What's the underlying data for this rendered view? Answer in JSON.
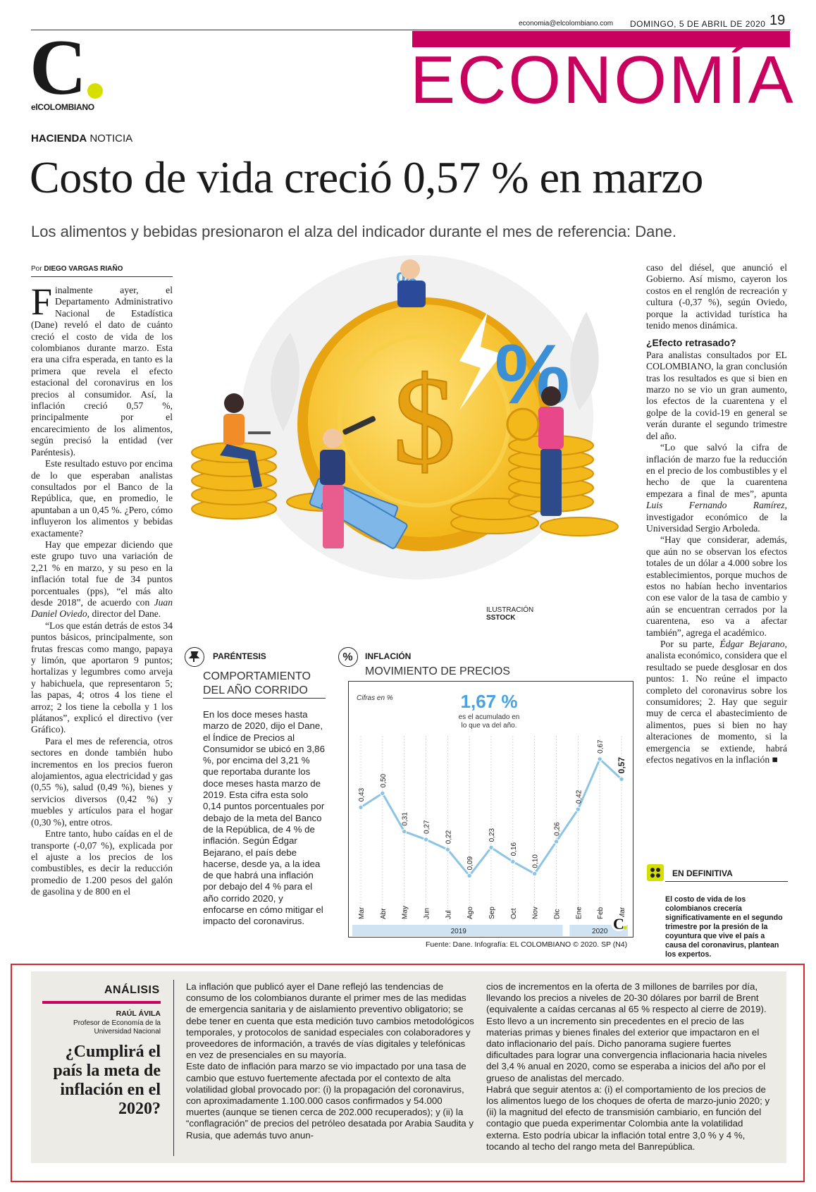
{
  "header": {
    "email": "economia@elcolombiano.com",
    "date": "DOMINGO, 5 DE ABRIL DE 2020",
    "page_number": "19",
    "section": "ECONOMÍA",
    "logo_letter": "C",
    "logo_name": "elCOLOMBIANO",
    "kicker_bold": "HACIENDA",
    "kicker_rest": " NOTICIA"
  },
  "article": {
    "headline": "Costo de vida creció 0,57 % en marzo",
    "subhead": "Los alimentos y bebidas presionaron el alza del indicador durante el mes de referencia: Dane.",
    "byline_prefix": "Por ",
    "byline_name": "DIEGO VARGAS RIAÑO",
    "drop_cap": "F",
    "col1_first": "inalmente ayer, el Departamento Administrativo Nacional de Estadística (Dane) reveló el dato de cuánto creció el costo de vida de los colombianos durante marzo. Esta era una cifra esperada, en tanto es la primera que revela el efecto estacional del coronavirus en los precios al consumidor. Así, la inflación creció 0,57 %, principalmente por el encarecimiento de los alimentos, según precisó la entidad (ver Paréntesis).",
    "col1_p2": "Este resultado estuvo por encima de lo que esperaban analistas consultados por el Banco de la República, que, en promedio, le apuntaban a un 0,45 %. ¿Pero, cómo influyeron los alimentos y bebidas exactamente?",
    "col1_p3a": "Hay que empezar diciendo que este grupo tuvo una variación de 2,21 % en marzo, y su peso en la inflación total fue de 34 puntos porcentuales (pps), “el más alto desde 2018”, de acuerdo con ",
    "col1_p3_name": "Juan Daniel Oviedo",
    "col1_p3b": ", director del Dane.",
    "col1_p4": "“Los que están detrás de estos 34 puntos básicos, principalmente, son frutas frescas como mango, papaya y limón, que aportaron 9 puntos; hortalizas y legumbres como arveja y habichuela, que representaron 5; las papas, 4; otros 4 los tiene el arroz; 2 los tiene la cebolla y 1 los plátanos”, explicó el directivo (ver Gráfico).",
    "col1_p5": "Para el mes de referencia, otros sectores en donde también hubo incrementos en los precios fueron alojamientos, agua electricidad y gas (0,55 %), salud (0,49 %), bienes y servicios diversos (0,42 %) y muebles y artículos para el hogar (0,30 %), entre otros.",
    "col1_p6": "Entre tanto, hubo caídas en el de transporte (-0,07 %), explicada por el ajuste a los precios de los combustibles, es decir la reducción promedio de 1.200 pesos del galón de gasolina y de 800 en el",
    "col3_p1": "caso del diésel, que anunció el Gobierno. Así mismo, cayeron los costos en el renglón de recreación y cultura (-0,37 %), según Oviedo, porque la actividad turística ha tenido menos dinámica.",
    "col3_h": "¿Efecto retrasado?",
    "col3_p2": "Para analistas consultados por EL COLOMBIANO, la gran conclusión tras los resultados es que si bien en marzo no se vio un gran aumento, los efectos de la cuarentena y el golpe de la covid-19 en general se verán durante el segundo trimestre del año.",
    "col3_p3a": "“Lo que salvó la cifra de inflación de marzo fue la reducción en el precio de los combustibles y el hecho de que la cuarentena empezara a final de mes”, apunta ",
    "col3_p3_name": "Luis Fernando Ramírez",
    "col3_p3b": ", investigador económico de la Universidad Sergio Arboleda.",
    "col3_p4": "“Hay que considerar, además, que aún no se observan los efectos totales de un dólar a 4.000 sobre los establecimientos, porque muchos de estos no habían hecho inventarios con ese valor de la tasa de cambio y aún se encuentran cerrados por la cuarentena, eso va a afectar también”, agrega el académico.",
    "col3_p5a": "Por su parte, ",
    "col3_p5_name": "Édgar Bejarano",
    "col3_p5b": ", analista económico, considera que el resultado se puede desglosar en dos puntos: 1. No reúne el impacto completo del coronavirus sobre los consumidores; 2. Hay que seguir muy de cerca el abastecimiento de alimentos, pues si bien no hay alteraciones de momento, si la emergencia se extiende, habrá efectos negativos en la inflación ■",
    "illustration_credit_1": "ILUSTRACIÓN",
    "illustration_credit_2": "SSTOCK"
  },
  "parentesis": {
    "label": "PARÉNTESIS",
    "title_1": "COMPORTAMIENTO",
    "title_2": "DEL AÑO CORRIDO",
    "body": "En los doce meses hasta marzo de 2020, dijo el Dane, el Índice de Precios al Consumidor se ubicó en 3,86 %, por encima del 3,21 % que reportaba durante los doce meses hasta marzo de 2019. Esta cifra esta solo 0,14 puntos porcentuales por debajo de la meta del Banco de la República, de 4 % de inflación. Según Édgar Bejarano, el país debe hacerse, desde ya, a la idea de que habrá una inflación por debajo del 4 % para el año corrido 2020, y enfocarse en cómo mitigar el impacto del coronavirus."
  },
  "chart_data": {
    "type": "line",
    "label": "INFLACIÓN",
    "title": "MOVIMIENTO DE PRECIOS",
    "unit_note": "Cifras en %",
    "highlight_value": "1,67 %",
    "highlight_text_1": "es el acumulado en",
    "highlight_text_2": "lo que va del año.",
    "categories": [
      "Mar",
      "Abr",
      "May",
      "Jun",
      "Jul",
      "Ago",
      "Sep",
      "Oct",
      "Nov",
      "Dic",
      "Ene",
      "Feb",
      "Mar"
    ],
    "values": [
      0.43,
      0.5,
      0.31,
      0.27,
      0.22,
      0.09,
      0.23,
      0.16,
      0.1,
      0.26,
      0.42,
      0.67,
      0.57
    ],
    "value_labels": [
      "0,43",
      "0,50",
      "0,31",
      "0,27",
      "0,22",
      "0,09",
      "0,23",
      "0,16",
      "0,10",
      "0,26",
      "0,42",
      "0,67",
      "0,57"
    ],
    "years": [
      {
        "label": "2019",
        "from": 0,
        "to": 9
      },
      {
        "label": "2020",
        "from": 10,
        "to": 12
      }
    ],
    "line_color": "#8cc4e6",
    "source": "Fuente: Dane. Infografía: EL COLOMBIANO © 2020. SP (N4)"
  },
  "en_definitiva": {
    "label": "EN DEFINITIVA",
    "body": "El costo de vida de los colombianos crecería significativamente en el segundo trimestre por la presión de la coyuntura que vive el país a causa del coronavirus, plantean los expertos."
  },
  "analysis": {
    "label": "ANÁLISIS",
    "author": "RAÚL ÁVILA",
    "role_1": "Profesor de Economía de la",
    "role_2": "Universidad Nacional",
    "question": "¿Cumplirá el país la meta de inflación en el 2020?",
    "col1_p1": "La inflación que publicó ayer el Dane reflejó las tendencias de consumo de los colombianos durante el primer mes de las medidas de emergencia sanitaria y de aislamiento preventivo obligatorio; se debe tener en cuenta que esta medición tuvo cambios metodológicos temporales, y protocolos de sanidad especiales con colaboradores y proveedores de información, a través de vías digitales y telefónicas en vez de presenciales en su mayoría.",
    "col1_p2": "Este dato de inflación para marzo se vio impactado por una tasa de cambio que estuvo fuertemente afectada por el contexto de alta volatilidad global provocado por: (i) la propagación del coronavirus, con aproximadamente 1.100.000 casos confirmados y 54.000 muertes (aunque se tienen cerca de 202.000 recuperados); y (ii) la “conflagración” de precios del petróleo desatada por Arabia Saudita y Rusia, que además tuvo anun-",
    "col2_p1": "cios de incrementos en la oferta de 3 millones de barriles por día, llevando los precios a niveles de 20-30 dólares por barril de Brent (equivalente a caídas cercanas al 65 % respecto al cierre de 2019). Esto llevo a un incremento sin precedentes en el precio de las materias primas y bienes finales del exterior que impactaron en el dato inflacionario del país. Dicho panorama sugiere fuertes dificultades para lograr una convergencia inflacionaria hacia niveles del 3,4 % anual en 2020, como se esperaba a inicios del año por el grueso de analistas del mercado.",
    "col2_p2": "Habrá que seguir atentos a: (i) el comportamiento de los precios de los alimentos luego de los choques de oferta de marzo-junio 2020; y (ii) la magnitud del efecto de transmisión cambiario, en función del contagio que pueda experimentar Colombia ante la volatilidad externa. Esto podría ubicar la inflación total entre 3,0 % y 4 %, tocando al techo del rango meta del Banrepública."
  }
}
